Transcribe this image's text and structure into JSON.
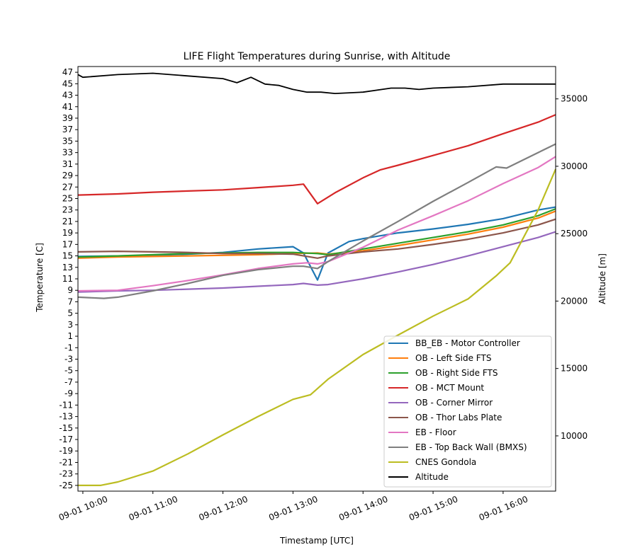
{
  "chart_data": {
    "type": "line",
    "title": "LIFE Flight Temperatures during Sunrise, with Altitude",
    "xlabel": "Timestamp [UTC]",
    "ylabel": "Temperature [C]",
    "y2label": "Altitude [m]",
    "x_unit": "hours UTC",
    "xlim": [
      9.93,
      16.75
    ],
    "ylim": [
      -26,
      48
    ],
    "y2lim": [
      5900,
      37400
    ],
    "x_ticks": [
      {
        "value": 10,
        "label": "09-01 10:00"
      },
      {
        "value": 11,
        "label": "09-01 11:00"
      },
      {
        "value": 12,
        "label": "09-01 12:00"
      },
      {
        "value": 13,
        "label": "09-01 13:00"
      },
      {
        "value": 14,
        "label": "09-01 14:00"
      },
      {
        "value": 15,
        "label": "09-01 15:00"
      },
      {
        "value": 16,
        "label": "09-01 16:00"
      }
    ],
    "y_ticks": [
      -25,
      -23,
      -21,
      -19,
      -17,
      -15,
      -13,
      -11,
      -9,
      -7,
      -5,
      -3,
      -1,
      1,
      3,
      5,
      7,
      9,
      11,
      13,
      15,
      17,
      19,
      21,
      23,
      25,
      27,
      29,
      31,
      33,
      35,
      37,
      39,
      41,
      43,
      45,
      47
    ],
    "y2_ticks": [
      10000,
      15000,
      20000,
      25000,
      30000,
      35000
    ],
    "grid": false,
    "legend_position": "lower-right",
    "series": [
      {
        "name": "BB_EB - Motor Controller",
        "color": "#1f77b4",
        "axis": "left",
        "x": [
          9.93,
          10.5,
          11.0,
          11.5,
          12.0,
          12.5,
          13.0,
          13.15,
          13.35,
          13.5,
          13.8,
          14.0,
          14.5,
          15.0,
          15.5,
          16.0,
          16.5,
          16.75
        ],
        "y": [
          14.9,
          15.0,
          15.1,
          15.3,
          15.6,
          16.2,
          16.6,
          15.5,
          10.8,
          15.5,
          17.5,
          18.0,
          19.0,
          19.7,
          20.5,
          21.5,
          23.0,
          23.5
        ]
      },
      {
        "name": "OB - Left Side FTS",
        "color": "#ff7f0e",
        "axis": "left",
        "x": [
          9.93,
          10.5,
          11.0,
          11.5,
          12.0,
          12.5,
          13.0,
          13.35,
          13.5,
          14.0,
          14.5,
          15.0,
          15.5,
          16.0,
          16.5,
          16.75
        ],
        "y": [
          14.6,
          14.8,
          14.9,
          15.0,
          15.1,
          15.2,
          15.4,
          15.5,
          15.3,
          15.9,
          16.8,
          17.8,
          18.8,
          20.0,
          21.6,
          22.8
        ]
      },
      {
        "name": "OB - Right Side FTS",
        "color": "#2ca02c",
        "axis": "left",
        "x": [
          9.93,
          10.5,
          11.0,
          11.5,
          12.0,
          12.5,
          13.0,
          13.35,
          13.5,
          14.0,
          14.5,
          15.0,
          15.5,
          16.0,
          16.5,
          16.75
        ],
        "y": [
          14.8,
          15.0,
          15.2,
          15.4,
          15.5,
          15.6,
          15.6,
          15.4,
          15.2,
          16.2,
          17.2,
          18.2,
          19.2,
          20.4,
          22.0,
          23.2
        ]
      },
      {
        "name": "OB - MCT Mount",
        "color": "#d62728",
        "axis": "left",
        "x": [
          9.93,
          10.5,
          11.0,
          11.5,
          12.0,
          12.5,
          13.0,
          13.15,
          13.35,
          13.6,
          14.0,
          14.25,
          14.5,
          15.0,
          15.5,
          16.0,
          16.5,
          16.75
        ],
        "y": [
          25.6,
          25.8,
          26.1,
          26.3,
          26.5,
          26.9,
          27.3,
          27.5,
          24.1,
          26.0,
          28.6,
          30.0,
          30.8,
          32.5,
          34.2,
          36.3,
          38.3,
          39.6
        ]
      },
      {
        "name": "OB - Corner Mirror",
        "color": "#9467bd",
        "axis": "left",
        "x": [
          9.93,
          10.5,
          11.0,
          11.5,
          12.0,
          12.5,
          13.0,
          13.15,
          13.35,
          13.5,
          14.0,
          14.5,
          15.0,
          15.5,
          16.0,
          16.5,
          16.75
        ],
        "y": [
          8.7,
          8.9,
          9.0,
          9.2,
          9.4,
          9.7,
          10.0,
          10.2,
          9.9,
          10.0,
          11.0,
          12.2,
          13.5,
          15.0,
          16.6,
          18.2,
          19.2
        ]
      },
      {
        "name": "OB - Thor Labs Plate",
        "color": "#8c564b",
        "axis": "left",
        "x": [
          9.93,
          10.5,
          11.0,
          11.5,
          12.0,
          12.5,
          13.0,
          13.35,
          13.5,
          14.0,
          14.5,
          15.0,
          15.5,
          16.0,
          16.5,
          16.75
        ],
        "y": [
          15.7,
          15.8,
          15.7,
          15.6,
          15.4,
          15.4,
          15.3,
          14.6,
          15.0,
          15.7,
          16.2,
          17.0,
          17.9,
          19.0,
          20.4,
          21.4
        ]
      },
      {
        "name": "EB - Floor",
        "color": "#e377c2",
        "axis": "left",
        "x": [
          9.93,
          10.5,
          11.0,
          11.5,
          12.0,
          12.5,
          13.0,
          13.2,
          13.35,
          13.5,
          14.0,
          14.5,
          15.0,
          15.5,
          16.0,
          16.5,
          16.75
        ],
        "y": [
          8.9,
          9.0,
          9.8,
          10.7,
          11.7,
          12.8,
          13.6,
          13.8,
          13.6,
          14.0,
          16.5,
          19.5,
          22.0,
          24.6,
          27.6,
          30.4,
          32.3
        ]
      },
      {
        "name": "EB - Top Back Wall (BMXS)",
        "color": "#7f7f7f",
        "axis": "left",
        "x": [
          9.93,
          10.3,
          10.5,
          11.0,
          11.5,
          12.0,
          12.5,
          13.0,
          13.15,
          13.35,
          13.5,
          14.0,
          14.5,
          15.0,
          15.5,
          15.9,
          16.05,
          16.5,
          16.75
        ],
        "y": [
          7.8,
          7.6,
          7.8,
          8.9,
          10.2,
          11.6,
          12.6,
          13.2,
          13.2,
          12.8,
          14.0,
          17.6,
          21.0,
          24.5,
          27.8,
          30.5,
          30.3,
          33.0,
          34.5
        ]
      },
      {
        "name": "CNES Gondola",
        "color": "#bcbd22",
        "axis": "left",
        "x": [
          9.93,
          10.25,
          10.5,
          11.0,
          11.5,
          12.0,
          12.5,
          13.0,
          13.25,
          13.5,
          14.0,
          14.5,
          15.0,
          15.5,
          15.9,
          16.1,
          16.5,
          16.75
        ],
        "y": [
          -25.0,
          -25.0,
          -24.4,
          -22.5,
          -19.5,
          -16.2,
          -13.0,
          -10.0,
          -9.2,
          -6.5,
          -2.2,
          1.2,
          4.5,
          7.5,
          11.5,
          13.8,
          23.0,
          30.1
        ]
      },
      {
        "name": "Altitude",
        "color": "#000000",
        "axis": "right",
        "x": [
          9.93,
          10.0,
          10.5,
          11.0,
          11.5,
          12.0,
          12.2,
          12.4,
          12.6,
          12.8,
          13.0,
          13.2,
          13.4,
          13.6,
          14.0,
          14.4,
          14.6,
          14.8,
          15.0,
          15.5,
          16.0,
          16.5,
          16.75
        ],
        "y": [
          36800,
          36600,
          36800,
          36900,
          36700,
          36500,
          36200,
          36600,
          36100,
          36000,
          35700,
          35500,
          35500,
          35400,
          35500,
          35800,
          35800,
          35700,
          35800,
          35900,
          36100,
          36100,
          36100
        ]
      }
    ]
  }
}
